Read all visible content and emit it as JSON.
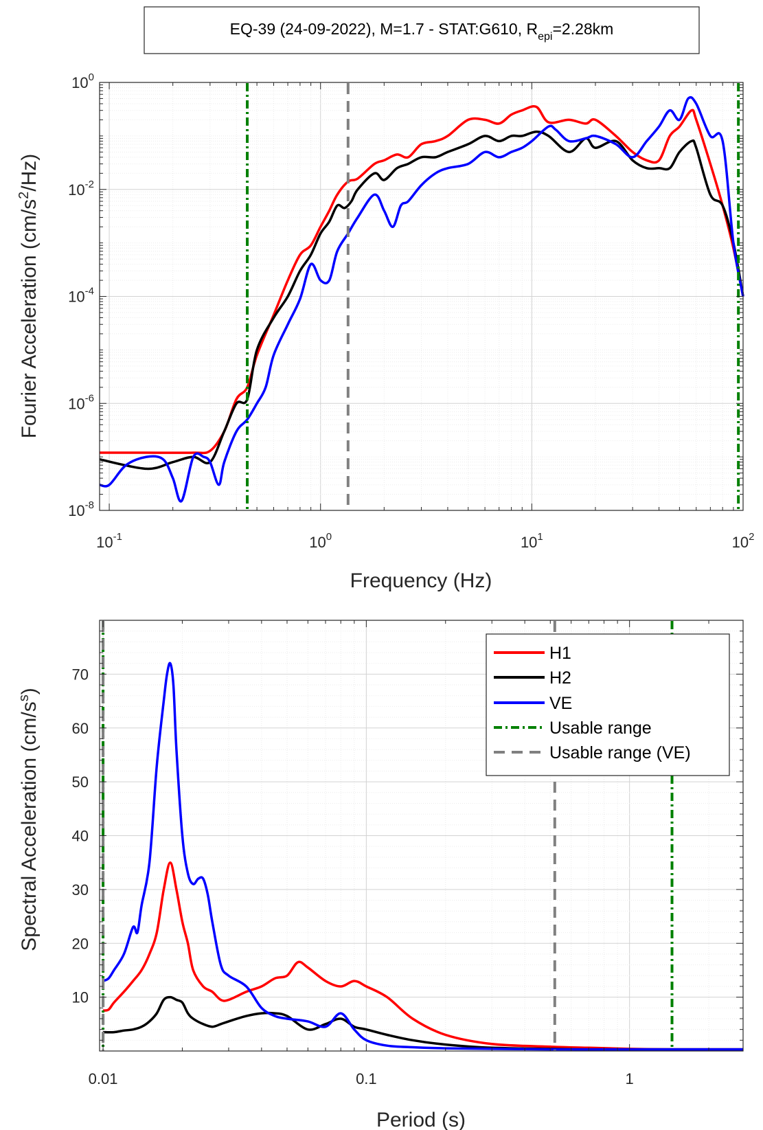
{
  "chart_data": [
    {
      "type": "line",
      "title": "EQ-39 (24-09-2022), M=1.7 - STAT:G610, R",
      "title_subscript": "epi",
      "title_suffix": "=2.28km",
      "xlabel": "Frequency (Hz)",
      "ylabel": "Fourier Acceleration (cm/s",
      "ylabel_superscript": "2",
      "ylabel_suffix": "/Hz)",
      "x_scale": "log",
      "y_scale": "log",
      "xlim": [
        0.09,
        100
      ],
      "ylim": [
        1e-08,
        1
      ],
      "x_tick_labels": [
        "10",
        "10",
        "10",
        "10"
      ],
      "x_tick_exponents": [
        "-1",
        "0",
        "1",
        "2"
      ],
      "y_tick_labels": [
        "10",
        "10",
        "10",
        "10",
        "10"
      ],
      "y_tick_exponents": [
        "-8",
        "-6",
        "-4",
        "-2",
        "0"
      ],
      "grid": true,
      "series": [
        {
          "name": "H1",
          "color": "#ff0000",
          "x": [
            0.09,
            0.15,
            0.25,
            0.3,
            0.35,
            0.4,
            0.45,
            0.5,
            0.6,
            0.7,
            0.8,
            0.9,
            1.0,
            1.1,
            1.2,
            1.35,
            1.5,
            1.8,
            2.0,
            2.3,
            2.6,
            3,
            3.5,
            4,
            5,
            6,
            7,
            8,
            9,
            10.5,
            12,
            15,
            18,
            20,
            25,
            30,
            35,
            40,
            45,
            50,
            57,
            60,
            70,
            80,
            90,
            100
          ],
          "y": [
            1.2e-07,
            1.2e-07,
            1.2e-07,
            1.3e-07,
            3e-07,
            1.2e-06,
            2e-06,
            8e-06,
            4.5e-05,
            0.0002,
            0.0006,
            0.0009,
            0.002,
            0.004,
            0.008,
            0.014,
            0.016,
            0.03,
            0.035,
            0.045,
            0.04,
            0.07,
            0.08,
            0.1,
            0.2,
            0.2,
            0.17,
            0.25,
            0.3,
            0.35,
            0.18,
            0.2,
            0.17,
            0.2,
            0.1,
            0.05,
            0.035,
            0.035,
            0.1,
            0.15,
            0.3,
            0.2,
            0.03,
            0.005,
            0.0008,
            0.0001
          ]
        },
        {
          "name": "H2",
          "color": "#000000",
          "x": [
            0.09,
            0.15,
            0.2,
            0.25,
            0.3,
            0.35,
            0.4,
            0.45,
            0.5,
            0.6,
            0.7,
            0.8,
            0.9,
            1.0,
            1.1,
            1.2,
            1.3,
            1.4,
            1.5,
            1.8,
            2.0,
            2.3,
            2.6,
            3,
            3.5,
            4,
            5,
            6,
            7,
            8,
            9,
            10.5,
            12,
            15,
            18,
            20,
            25,
            30,
            35,
            40,
            45,
            50,
            57,
            60,
            70,
            80,
            90,
            100
          ],
          "y": [
            9e-08,
            6e-08,
            8e-08,
            1e-07,
            8e-08,
            3e-07,
            1e-06,
            1.2e-06,
            1e-05,
            4e-05,
            0.0001,
            0.0003,
            0.0006,
            0.0015,
            0.0025,
            0.005,
            0.0045,
            0.006,
            0.01,
            0.02,
            0.015,
            0.025,
            0.03,
            0.04,
            0.04,
            0.05,
            0.07,
            0.1,
            0.08,
            0.1,
            0.1,
            0.12,
            0.1,
            0.05,
            0.09,
            0.06,
            0.08,
            0.035,
            0.025,
            0.025,
            0.025,
            0.05,
            0.08,
            0.06,
            0.008,
            0.005,
            0.001,
            0.0001
          ]
        },
        {
          "name": "VE",
          "color": "#0000ff",
          "x": [
            0.09,
            0.1,
            0.12,
            0.15,
            0.18,
            0.2,
            0.22,
            0.25,
            0.28,
            0.3,
            0.33,
            0.35,
            0.4,
            0.45,
            0.5,
            0.55,
            0.6,
            0.7,
            0.8,
            0.9,
            1.0,
            1.1,
            1.2,
            1.35,
            1.5,
            1.8,
            2.0,
            2.2,
            2.4,
            2.6,
            3,
            3.5,
            4,
            5,
            6,
            7,
            8,
            9,
            10,
            12,
            13,
            15,
            18,
            20,
            25,
            30,
            35,
            40,
            45,
            50,
            55,
            60,
            70,
            80,
            90,
            100
          ],
          "y": [
            3e-08,
            3e-08,
            7e-08,
            1e-07,
            9e-08,
            4e-08,
            1.5e-08,
            1e-07,
            1e-07,
            8e-08,
            3e-08,
            8e-08,
            3e-07,
            5e-07,
            1e-06,
            2e-06,
            8e-06,
            3e-05,
            9e-05,
            0.0004,
            0.0002,
            0.0002,
            0.0007,
            0.0015,
            0.003,
            0.008,
            0.004,
            0.002,
            0.005,
            0.006,
            0.012,
            0.02,
            0.025,
            0.03,
            0.05,
            0.04,
            0.05,
            0.06,
            0.08,
            0.15,
            0.13,
            0.08,
            0.09,
            0.1,
            0.07,
            0.04,
            0.08,
            0.15,
            0.3,
            0.2,
            0.5,
            0.4,
            0.1,
            0.08,
            0.001,
            0.0001
          ]
        }
      ],
      "vlines": [
        {
          "name": "Usable range",
          "x": 0.45,
          "color": "#008000",
          "dash": "dashdot"
        },
        {
          "name": "Usable range",
          "x": 95,
          "color": "#008000",
          "dash": "dashdot"
        },
        {
          "name": "Usable range (VE)",
          "x": 1.35,
          "color": "#808080",
          "dash": "dash"
        }
      ]
    },
    {
      "type": "line",
      "title": "",
      "xlabel": "Period (s)",
      "ylabel": "Spectral Acceleration (cm/s",
      "ylabel_superscript": "s",
      "ylabel_suffix": ")",
      "x_scale": "log",
      "y_scale": "linear",
      "xlim": [
        0.0097,
        2.7
      ],
      "ylim": [
        0,
        80
      ],
      "x_tick_labels": [
        "0.01",
        "0.1",
        "1"
      ],
      "x_tick_values": [
        0.01,
        0.1,
        1
      ],
      "y_tick_values": [
        10,
        20,
        30,
        40,
        50,
        60,
        70
      ],
      "y_tick_labels": [
        "10",
        "20",
        "30",
        "40",
        "50",
        "60",
        "70"
      ],
      "grid": true,
      "legend": {
        "placement": "top-right",
        "entries": [
          "H1",
          "H2",
          "VE",
          "Usable range",
          "Usable range (VE)"
        ]
      },
      "series": [
        {
          "name": "H1",
          "color": "#ff0000",
          "x": [
            0.01,
            0.0105,
            0.011,
            0.012,
            0.013,
            0.014,
            0.015,
            0.016,
            0.017,
            0.018,
            0.019,
            0.02,
            0.021,
            0.022,
            0.024,
            0.026,
            0.028,
            0.03,
            0.035,
            0.04,
            0.045,
            0.05,
            0.055,
            0.06,
            0.07,
            0.08,
            0.09,
            0.1,
            0.12,
            0.15,
            0.2,
            0.3,
            0.5,
            0.7,
            1,
            1.5,
            2,
            2.7
          ],
          "y": [
            7.5,
            7.7,
            9,
            11,
            13,
            15,
            18,
            22,
            30,
            35,
            30,
            24,
            20,
            15,
            12,
            11,
            9.5,
            9.5,
            11,
            12,
            13.5,
            14,
            16.5,
            15.5,
            13,
            12,
            13,
            12,
            10,
            6,
            3,
            1.3,
            0.8,
            0.6,
            0.4,
            0.3,
            0.3,
            0.3
          ]
        },
        {
          "name": "H2",
          "color": "#000000",
          "x": [
            0.01,
            0.011,
            0.012,
            0.013,
            0.014,
            0.015,
            0.016,
            0.017,
            0.018,
            0.019,
            0.02,
            0.021,
            0.022,
            0.024,
            0.026,
            0.028,
            0.03,
            0.035,
            0.04,
            0.045,
            0.05,
            0.06,
            0.07,
            0.08,
            0.09,
            0.1,
            0.12,
            0.15,
            0.2,
            0.3,
            0.5,
            0.7,
            1,
            1.5,
            2,
            2.7
          ],
          "y": [
            3.5,
            3.5,
            3.8,
            4,
            4.5,
            5.5,
            7,
            9.5,
            10,
            9.5,
            9,
            7,
            6,
            5,
            4.5,
            5,
            5.5,
            6.5,
            7,
            7,
            6.5,
            4,
            5,
            6,
            4.5,
            4,
            3,
            2,
            1.2,
            0.6,
            0.4,
            0.3,
            0.3,
            0.3,
            0.3,
            0.3
          ]
        },
        {
          "name": "VE",
          "color": "#0000ff",
          "x": [
            0.01,
            0.0105,
            0.011,
            0.012,
            0.013,
            0.0135,
            0.014,
            0.015,
            0.016,
            0.017,
            0.0175,
            0.018,
            0.0185,
            0.019,
            0.02,
            0.021,
            0.022,
            0.023,
            0.024,
            0.025,
            0.026,
            0.028,
            0.03,
            0.035,
            0.04,
            0.045,
            0.05,
            0.06,
            0.07,
            0.08,
            0.09,
            0.1,
            0.12,
            0.15,
            0.2,
            0.3,
            0.5,
            0.7,
            1,
            1.5,
            2,
            2.7
          ],
          "y": [
            13,
            13.5,
            15,
            18,
            23,
            22,
            27,
            35,
            53,
            65,
            70,
            72,
            68,
            56,
            40,
            33,
            31,
            32,
            32,
            29,
            24,
            16,
            14,
            12,
            8,
            6.5,
            6,
            5.5,
            4.5,
            7,
            4,
            2,
            1,
            0.7,
            0.5,
            0.4,
            0.3,
            0.3,
            0.3,
            0.3,
            0.3,
            0.3
          ]
        }
      ],
      "vlines": [
        {
          "name": "Usable range",
          "x": 0.01,
          "color": "#008000",
          "dash": "dashdot"
        },
        {
          "name": "Usable range",
          "x": 1.45,
          "color": "#008000",
          "dash": "dashdot"
        },
        {
          "name": "Usable range (VE)",
          "x": 0.01,
          "color": "#808080",
          "dash": "dash"
        },
        {
          "name": "Usable range (VE)",
          "x": 0.52,
          "color": "#808080",
          "dash": "dash"
        }
      ]
    }
  ]
}
